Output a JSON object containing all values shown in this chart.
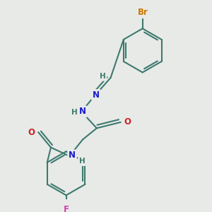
{
  "background_color": "#e8eae8",
  "bond_color": "#3d7a6e",
  "bond_width": 1.5,
  "atom_colors": {
    "Br": "#cc7700",
    "F": "#cc44aa",
    "N": "#1a1acc",
    "O": "#cc2222",
    "C": "#3d7a6e",
    "H": "#3d7a6e"
  },
  "figsize": [
    3.0,
    3.0
  ],
  "dpi": 100
}
